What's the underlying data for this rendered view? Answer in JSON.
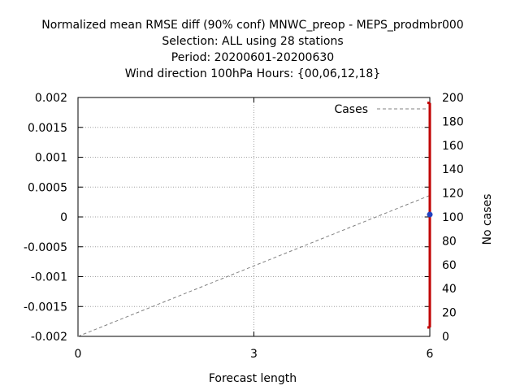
{
  "chart_data": {
    "type": "line",
    "title_lines": [
      "Normalized mean RMSE diff (90% conf) MNWC_preop - MEPS_prodmbr000",
      "Selection: ALL using    28 stations",
      "Period: 20200601-20200630",
      "Wind direction 100hPa   Hours: {00,06,12,18}"
    ],
    "xlabel": "Forecast length",
    "y2label": "No cases",
    "x_ticks": [
      0,
      3,
      6
    ],
    "y_ticks": [
      "0.002",
      "0.0015",
      "0.001",
      "0.0005",
      "0",
      "-0.0005",
      "-0.001",
      "-0.0015",
      "-0.002"
    ],
    "y2_ticks": [
      "200",
      "180",
      "160",
      "140",
      "120",
      "100",
      "80",
      "60",
      "40",
      "20",
      "0"
    ],
    "xlim": [
      0,
      6
    ],
    "ylim": [
      -0.002,
      0.002
    ],
    "y2lim": [
      0,
      200
    ],
    "grid": true,
    "legend_position": "top-right",
    "legend_entry": "Cases",
    "series": [
      {
        "name": "Cases",
        "axis": "y2",
        "style": "dashed",
        "color": "#808080",
        "x": [
          0,
          6
        ],
        "y": [
          0,
          118
        ]
      }
    ],
    "errorbar": {
      "x": 6,
      "mean": 4e-05,
      "low": -0.00185,
      "high": 0.00191,
      "color": "#c00000",
      "marker_color": "#2040c0"
    }
  }
}
